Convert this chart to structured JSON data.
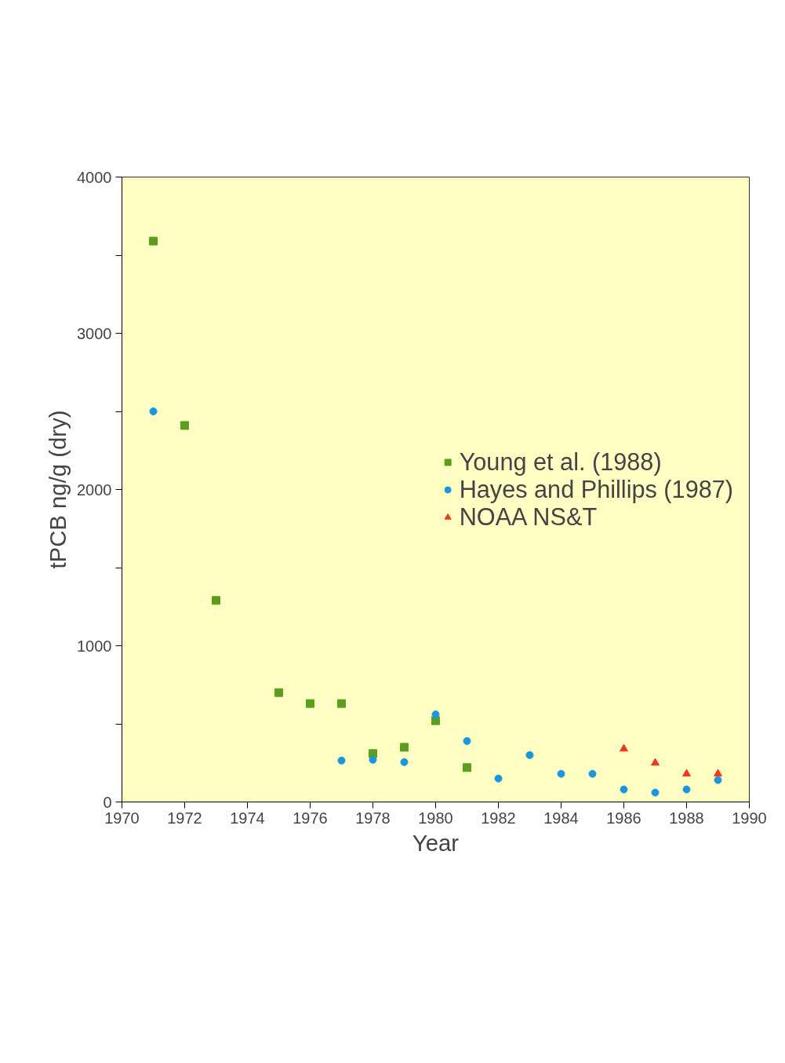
{
  "chart_data": {
    "type": "scatter",
    "xlabel": "Year",
    "ylabel": "tPCB ng/g (dry)",
    "xlim": [
      1970,
      1990
    ],
    "ylim": [
      0,
      4000
    ],
    "xticks": [
      1970,
      1972,
      1974,
      1976,
      1978,
      1980,
      1982,
      1984,
      1986,
      1988,
      1990
    ],
    "yticks": [
      0,
      {
        "value": 500,
        "label": null
      },
      1000,
      {
        "value": 1500,
        "label": null
      },
      2000,
      {
        "value": 2500,
        "label": null
      },
      3000,
      {
        "value": 3500,
        "label": null
      },
      4000
    ],
    "grid": false,
    "legend": "right",
    "series": [
      {
        "name": "Young et al. (1988)",
        "color": "#5a9e1e",
        "marker": "square",
        "x": [
          1971,
          1972,
          1973,
          1975,
          1976,
          1977,
          1978,
          1979,
          1980,
          1981
        ],
        "values": [
          3590,
          2410,
          1290,
          700,
          630,
          630,
          310,
          350,
          520,
          220
        ]
      },
      {
        "name": "Hayes and Phillips (1987)",
        "color": "#1a96e0",
        "marker": "circle",
        "x": [
          1971,
          1977,
          1978,
          1979,
          1980,
          1981,
          1982,
          1983,
          1984,
          1985,
          1986,
          1987,
          1988,
          1989
        ],
        "values": [
          2500,
          265,
          270,
          255,
          560,
          390,
          150,
          300,
          180,
          180,
          80,
          60,
          80,
          140
        ]
      },
      {
        "name": "NOAA NS&T",
        "color": "#f03a1e",
        "marker": "triangle",
        "x": [
          1986,
          1987,
          1988,
          1989
        ],
        "values": [
          340,
          250,
          180,
          180
        ]
      }
    ]
  }
}
